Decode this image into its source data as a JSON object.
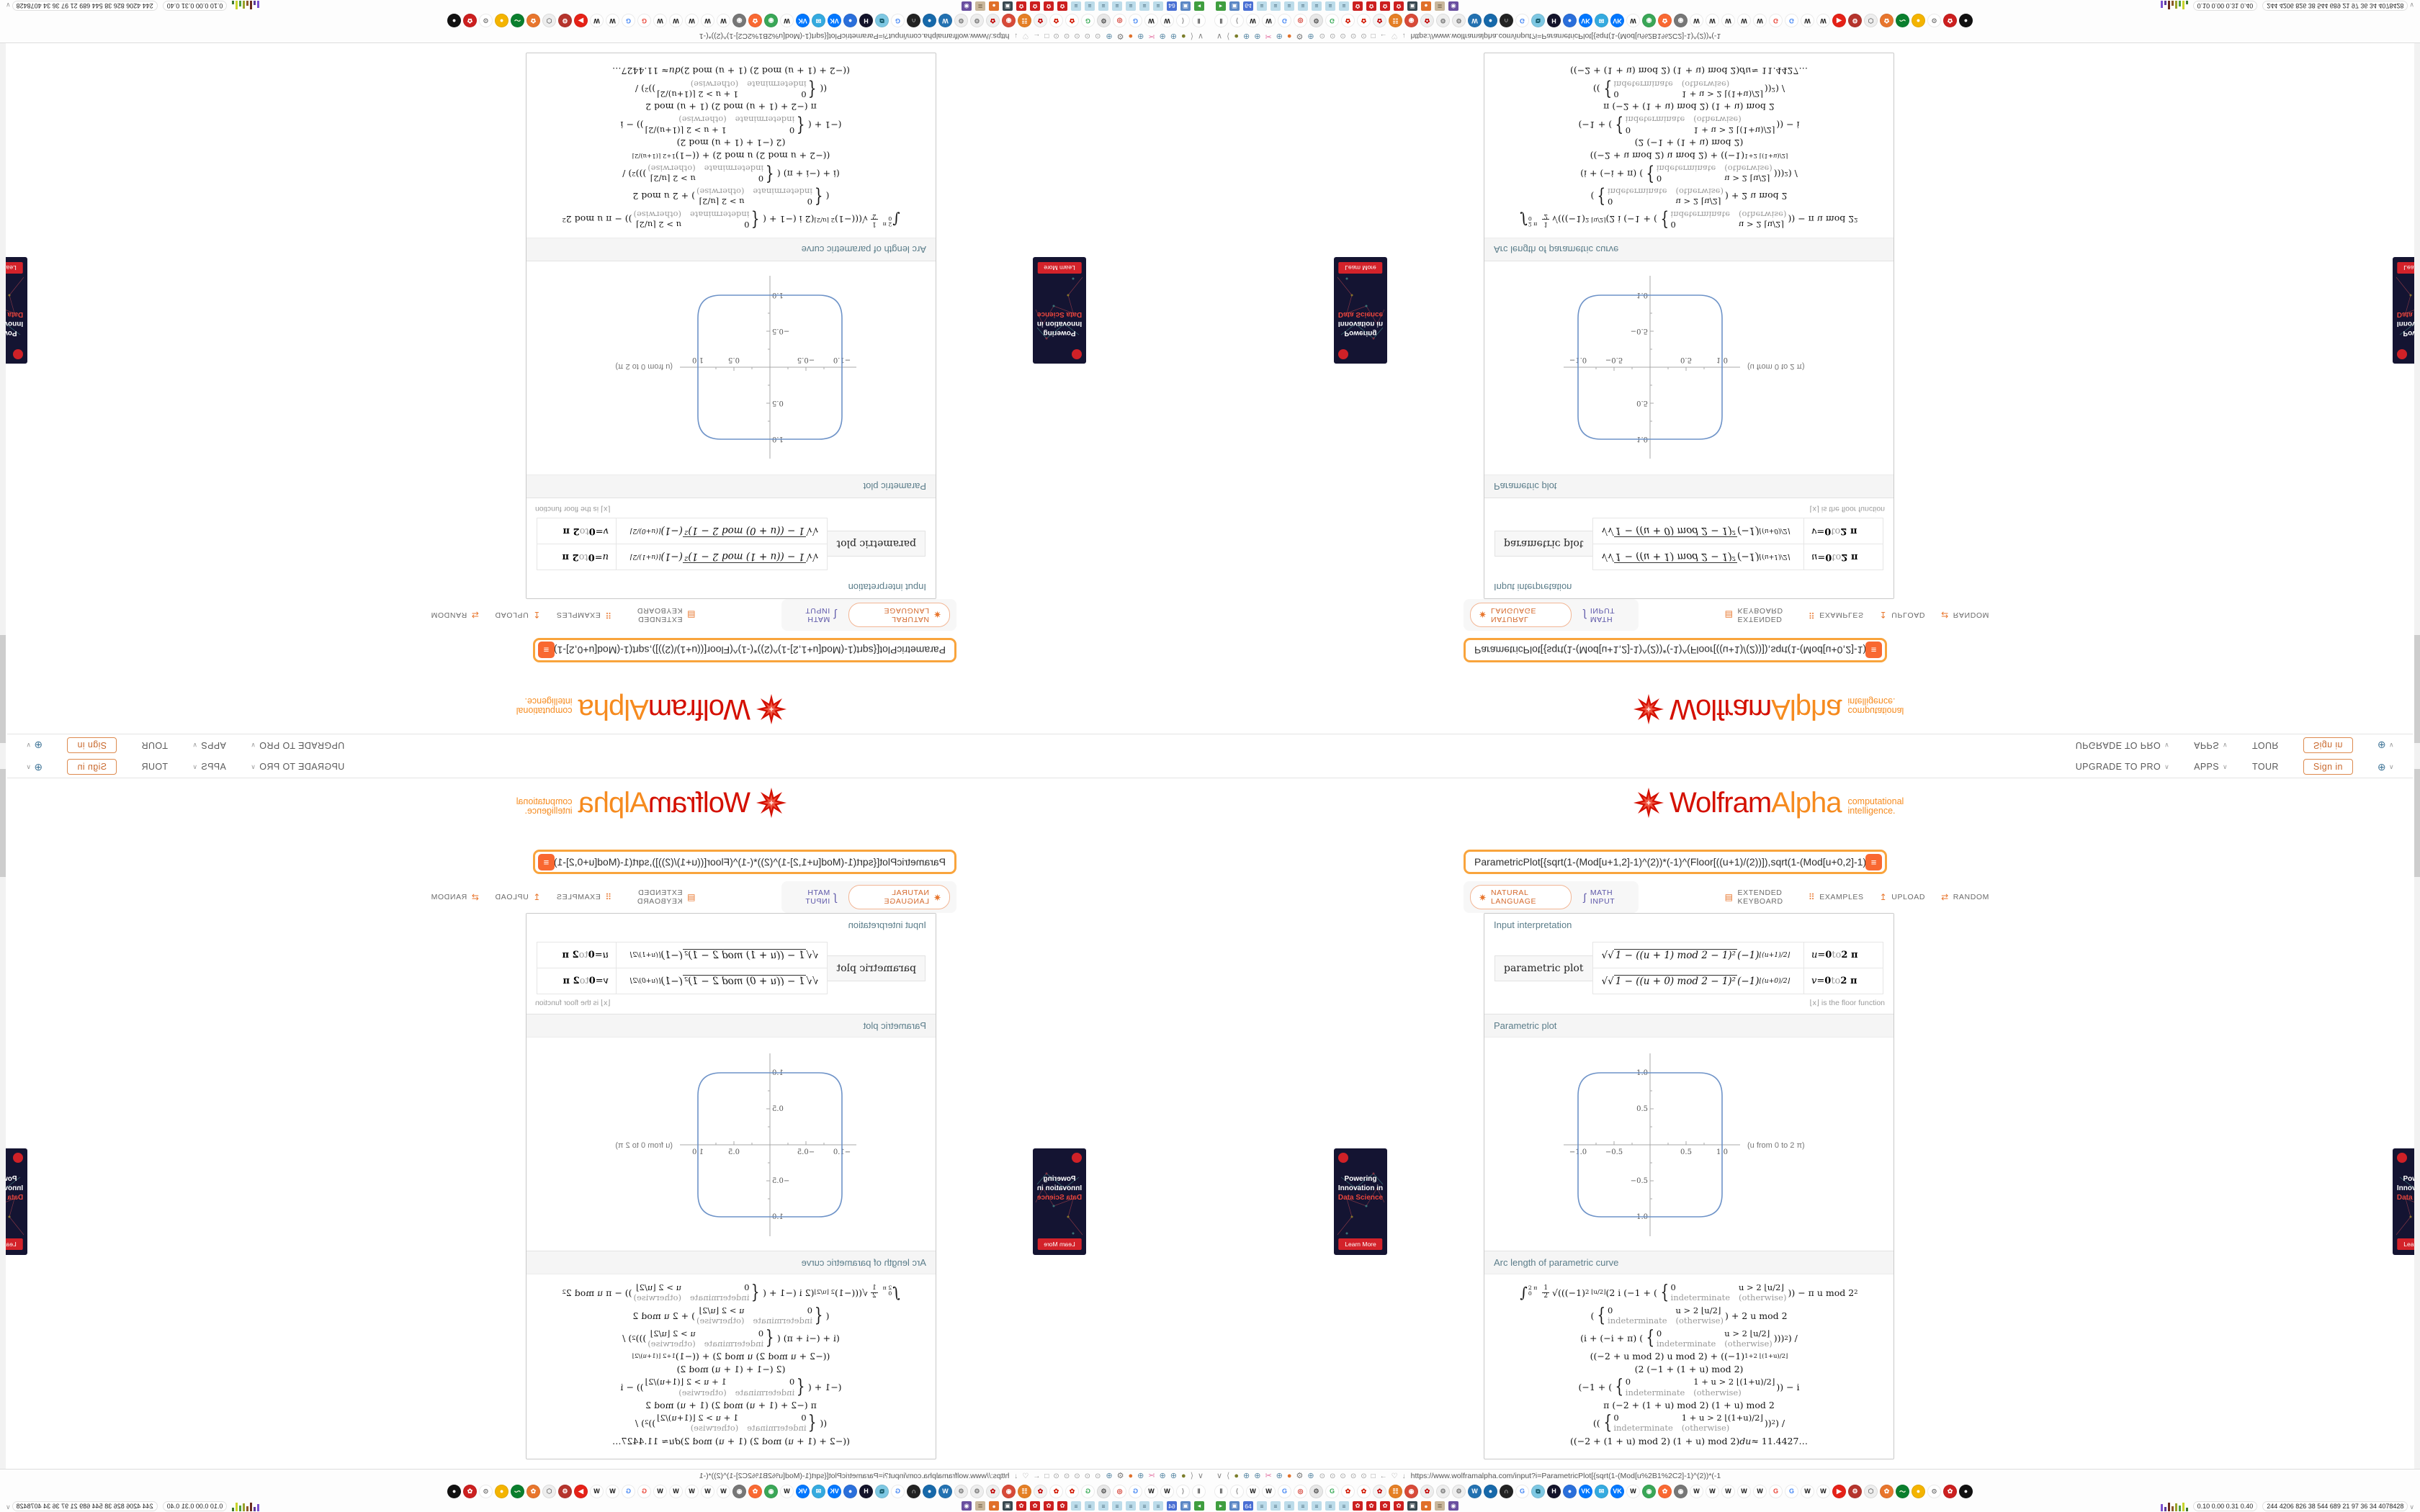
{
  "page": {
    "nav": {
      "items": [
        {
          "label": "UPGRADE TO PRO",
          "caret": "∨"
        },
        {
          "label": "APPS",
          "caret": "∨"
        },
        {
          "label": "TOUR",
          "caret": ""
        }
      ],
      "signin": "Sign in",
      "lang_caret": "∨"
    },
    "logo": {
      "wolfram": "Wolfram",
      "alpha": "Alpha",
      "tagline1": "computational",
      "tagline2": "intelligence."
    },
    "search": {
      "query": "ParametricPlot[{sqrt(1-(Mod[u+1,2]-1)^(2))*(-1)^(Floor[((u+1)/(2))]),sqrt(1-(Mod[u+0,2]-1)^(2))*(-1)^(Floo",
      "compute_glyph": "≡"
    },
    "modes": {
      "natural": "NATURAL LANGUAGE",
      "math": "MATH INPUT",
      "math_icon": "∫",
      "keyboard": "EXTENDED KEYBOARD",
      "keyboard_icon": "▤",
      "examples": "EXAMPLES",
      "examples_icon": "⠿",
      "upload": "UPLOAD",
      "upload_icon": "↥",
      "random": "RANDOM",
      "random_icon": "⇄"
    },
    "pods": {
      "interp_title": "Input interpretation",
      "interp_label": "parametric plot",
      "rows": [
        {
          "formula": [
            {
              "t": "√"
            },
            {
              "r": "1 − ((u + 1) mod 2 − 1)²"
            },
            {
              "t": " (−1)"
            },
            {
              "s": "⌊(u+1)/2⌋"
            }
          ],
          "range": [
            {
              "v": "u"
            },
            {
              "t": " = "
            },
            {
              "x": "0"
            },
            {
              "g": " to "
            },
            {
              "x": "2 π"
            }
          ]
        },
        {
          "formula": [
            {
              "t": "√"
            },
            {
              "r": "1 − ((u + 0) mod 2 − 1)²"
            },
            {
              "t": " (−1)"
            },
            {
              "s": "⌊(u+0)/2⌋"
            }
          ],
          "range": [
            {
              "v": "v"
            },
            {
              "t": " = "
            },
            {
              "x": "0"
            },
            {
              "g": " to "
            },
            {
              "x": "2 π"
            }
          ]
        }
      ],
      "floor_note": "⌊x⌋ is the floor function",
      "plot_title": "Parametric plot",
      "arc_title": "Arc length of parametric curve",
      "arc_lines": [
        [
          {
            "int": "∫"
          },
          {
            "l": [
              "2 π",
              "0"
            ]
          },
          {
            "fr": [
              "1",
              "2"
            ]
          },
          {
            "t": "√((("
          },
          {
            "t": "−1)"
          },
          {
            "s": "2 ⌊u/2⌋"
          },
          {
            "t": " (2 i (−1 + ("
          },
          {
            "c": [
              "0",
              "u > 2 ⌊u/2⌋",
              "indeterminate",
              "(otherwise)"
            ]
          },
          {
            "t": ")) − π u mod 2"
          },
          {
            "s": "2"
          }
        ],
        [
          {
            "t": "("
          },
          {
            "c": [
              "0",
              "u > 2 ⌊u/2⌋",
              "indeterminate",
              "(otherwise)"
            ]
          },
          {
            "t": ") + 2 u mod 2"
          }
        ],
        [
          {
            "t": "(i + (−i + π) ("
          },
          {
            "c": [
              "0",
              "u > 2 ⌊u/2⌋",
              "indeterminate",
              "(otherwise)"
            ]
          },
          {
            "t": ")))"
          },
          {
            "s": "2"
          },
          {
            "t": ") /"
          }
        ],
        [
          {
            "t": "((−2 + u mod 2) u mod 2) + ((−1)"
          },
          {
            "s": "1+2 ⌊(1+u)/2⌋"
          }
        ],
        [
          {
            "t": "(2 (−1 + (1 + u) mod 2)"
          }
        ],
        [
          {
            "t": "(−1 + ("
          },
          {
            "c": [
              "0",
              "1 + u > 2 ⌊(1+u)/2⌋",
              "indeterminate",
              "(otherwise)"
            ]
          },
          {
            "t": ")) − i"
          }
        ],
        [
          {
            "t": "π (−2 + (1 + u) mod 2) (1 + u) mod 2"
          }
        ],
        [
          {
            "t": "(("
          },
          {
            "c": [
              "0",
              "1 + u > 2 ⌊(1+u)/2⌋",
              "indeterminate",
              "(otherwise)"
            ]
          },
          {
            "t": "))"
          },
          {
            "s": "2"
          },
          {
            "t": ") /"
          }
        ],
        [
          {
            "t": "((−2 + (1 + u) mod 2) (1 + u) mod 2) "
          },
          {
            "v": "du"
          },
          {
            "t": " ≈ 11.4427…"
          }
        ]
      ]
    },
    "ad": {
      "line1": "Powering",
      "line2": "Innovation in",
      "line3": "Data Science",
      "cta": "Learn More"
    },
    "chrome": {
      "url": "https://www.wolframalpha.com/input?i=ParametricPlot[{sqrt(1-(Mod[u%2B1%2C2]-1)^(2))*(-1",
      "ext_icons": [
        [
          "∨",
          "#888"
        ],
        [
          "⟨",
          "#999"
        ],
        [
          "●",
          "#7a7d2a"
        ],
        [
          "⊕",
          "#5b8aa6"
        ],
        [
          "⊕",
          "#5b8aa6"
        ],
        [
          "✂",
          "#e36fa0"
        ],
        [
          "⊕",
          "#5b8aa6"
        ],
        [
          "●",
          "#e0702a"
        ],
        [
          "⚙",
          "#777"
        ],
        [
          "⊕",
          "#5b8aa6"
        ]
      ],
      "nav_circles": [
        "⊙",
        "⊙",
        "⊙",
        "⊙",
        "⊙",
        "□",
        "←",
        "♡",
        "↓"
      ],
      "favicons": [
        [
          "Ⅱ",
          "#ffffff",
          "#555555"
        ],
        [
          "⟨",
          "#ffffff",
          "#888888"
        ],
        [
          "W",
          "#ffffff",
          "#111111"
        ],
        [
          "W",
          "#ffffff",
          "#111111"
        ],
        [
          "G",
          "#ffffff",
          "#4285f4"
        ],
        [
          "◎",
          "#ffffff",
          "#d33a2f"
        ],
        [
          "⚙",
          "#e8e8e8",
          "#555555"
        ],
        [
          "G",
          "#ffffff",
          "#34a853"
        ],
        [
          "✿",
          "#ffffff",
          "#d11800"
        ],
        [
          "✿",
          "#ffffff",
          "#d11800"
        ],
        [
          "✿",
          "#f3f3f3",
          "#c00000"
        ],
        [
          "☷",
          "#e57f25",
          "#ffffff"
        ],
        [
          "◉",
          "#d84a38",
          "#ffffff"
        ],
        [
          "✿",
          "#eeeeee",
          "#c00000"
        ],
        [
          "⚙",
          "#eeeeee",
          "#777777"
        ],
        [
          "⚙",
          "#eeeeee",
          "#777777"
        ],
        [
          "W",
          "#2271b1",
          "#ffffff"
        ],
        [
          "●",
          "#1769aa",
          "#ffffff"
        ],
        [
          "∩",
          "#222222",
          "#ffffff"
        ],
        [
          "G",
          "#ffffff",
          "#4285f4"
        ],
        [
          "⧉",
          "#7ec8e3",
          "#054a5a"
        ],
        [
          "H",
          "#13132a",
          "#ffffff"
        ],
        [
          "●",
          "#2a6fdb",
          "#ffffff"
        ],
        [
          "VK",
          "#0077ff",
          "#ffffff"
        ],
        [
          "✉",
          "#34aadf",
          "#ffffff"
        ],
        [
          "VK",
          "#0077ff",
          "#ffffff"
        ],
        [
          "W",
          "#ffffff",
          "#111111"
        ],
        [
          "◉",
          "#3aa757",
          "#ffffff"
        ],
        [
          "✿",
          "#f96932",
          "#ffffff"
        ],
        [
          "◉",
          "#777777",
          "#ffffff"
        ],
        [
          "W",
          "#ffffff",
          "#111111"
        ],
        [
          "W",
          "#ffffff",
          "#111111"
        ],
        [
          "W",
          "#ffffff",
          "#111111"
        ],
        [
          "W",
          "#ffffff",
          "#111111"
        ],
        [
          "W",
          "#ffffff",
          "#111111"
        ],
        [
          "G",
          "#ffffff",
          "#ea4335"
        ],
        [
          "G",
          "#ffffff",
          "#4285f4"
        ],
        [
          "W",
          "#ffffff",
          "#111111"
        ],
        [
          "W",
          "#ffffff",
          "#111111"
        ],
        [
          "▶",
          "#e62117",
          "#ffffff"
        ],
        [
          "⚙",
          "#b5342c",
          "#ffffff"
        ],
        [
          "⬡",
          "#eeeeee",
          "#777777"
        ],
        [
          "✿",
          "#e8762d",
          "#ffffff"
        ],
        [
          "〜",
          "#0a7f2e",
          "#fffde7"
        ],
        [
          "●",
          "#f4b400",
          "#ffffff"
        ],
        [
          "⊙",
          "#ffffff",
          "#666666"
        ],
        [
          "✿",
          "#cc1f1f",
          "#ffffff"
        ],
        [
          "●",
          "#111111",
          "#ffffff"
        ]
      ],
      "bookmarks": [
        [
          "▸",
          "#3f9e3f",
          "#ffffff"
        ],
        [
          "▣",
          "#5b87c5",
          "#ffffff"
        ],
        [
          "64",
          "#4a6fd4",
          "#ffffff"
        ],
        [
          "≡",
          "#bcdcea",
          "#446677"
        ],
        [
          "≡",
          "#bcdcea",
          "#446677"
        ],
        [
          "≡",
          "#bcdcea",
          "#446677"
        ],
        [
          "≡",
          "#bcdcea",
          "#446677"
        ],
        [
          "≡",
          "#bcdcea",
          "#446677"
        ],
        [
          "≡",
          "#bcdcea",
          "#446677"
        ],
        [
          "≡",
          "#bcdcea",
          "#446677"
        ],
        [
          "✿",
          "#cc1f1f",
          "#ffffff"
        ],
        [
          "✿",
          "#cc1f1f",
          "#ffffff"
        ],
        [
          "✿",
          "#cc1f1f",
          "#ffffff"
        ],
        [
          "✿",
          "#cc1f1f",
          "#ffffff"
        ],
        [
          "▣",
          "#37474f",
          "#ffffff"
        ],
        [
          "●",
          "#e0702a",
          "#ffffff"
        ],
        [
          "≣",
          "#c9b79c",
          "#5a4a32"
        ],
        [
          "◉",
          "#6a4fa0",
          "#ffffff"
        ]
      ],
      "stats_bars": [
        [
          10,
          "#7a4fd0"
        ],
        [
          6,
          "#5d3a9b"
        ],
        [
          12,
          "#6b2d1f"
        ],
        [
          7,
          "#8a5a2a"
        ],
        [
          11,
          "#9aa32a"
        ],
        [
          8,
          "#4f9e3f"
        ],
        [
          12,
          "#c9d42a"
        ],
        [
          5,
          "#3f7a2f"
        ]
      ],
      "stats1": "0.10 0.00 0.31 0.40",
      "stats2": "244 4206 826 38 544 689 21 97 36 34 4078428",
      "stats_caret": "∨"
    }
  },
  "chart_data": {
    "type": "line",
    "title": "Parametric plot",
    "caption": "(u from 0 to 2 π)",
    "x_of_u": "sqrt(1-((u+1) mod 2 - 1)^2) * (-1)^floor((u+1)/2)",
    "y_of_u": "sqrt(1-((u+0) mod 2 - 1)^2) * (-1)^floor((u+0)/2)",
    "u_range": [
      0,
      "2π"
    ],
    "xlim": [
      -1.2,
      1.2
    ],
    "ylim": [
      -1.2,
      1.2
    ],
    "x_tick_labels": [
      "−1.0",
      "−0.5",
      "0.5",
      "1.0"
    ],
    "y_tick_labels": [
      "1.0",
      "0.5",
      "−0.5",
      "−1.0"
    ],
    "curve_color": "#6e93c8",
    "shape": "rounded square (squircle) through (±1,0) and (0,±1)",
    "sample_points": [
      [
        1,
        0
      ],
      [
        1,
        0.7
      ],
      [
        0.93,
        0.93
      ],
      [
        0.7,
        1
      ],
      [
        0,
        1
      ],
      [
        -0.7,
        1
      ],
      [
        -0.93,
        0.93
      ],
      [
        -1,
        0.7
      ],
      [
        -1,
        0
      ],
      [
        -1,
        -0.7
      ],
      [
        -0.93,
        -0.93
      ],
      [
        -0.7,
        -1
      ],
      [
        0,
        -1
      ],
      [
        0.7,
        -1
      ],
      [
        0.93,
        -0.93
      ],
      [
        1,
        -0.7
      ],
      [
        1,
        0
      ]
    ],
    "arc_length_result": "11.4427…",
    "legend": null,
    "grid": false
  }
}
